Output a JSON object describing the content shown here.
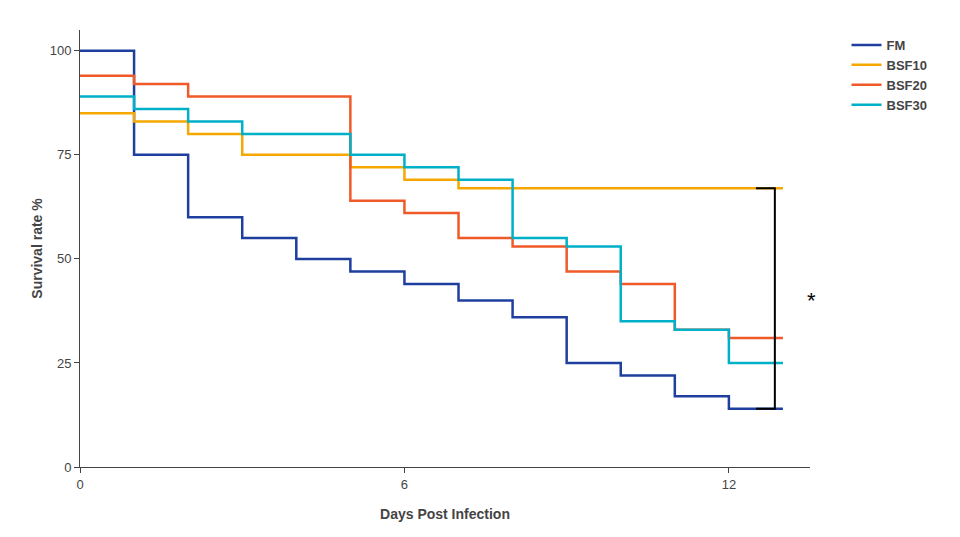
{
  "chart_data": {
    "type": "line",
    "xlabel": "Days Post Infection",
    "ylabel": "Survival rate %",
    "xlim": [
      0,
      13.5
    ],
    "ylim": [
      0,
      105
    ],
    "xticks": [
      0,
      6,
      12
    ],
    "yticks": [
      0,
      25,
      50,
      75,
      100
    ],
    "grid": false,
    "legend": "upper right",
    "series": [
      {
        "name": "FM",
        "color": "#1f3f9e",
        "x": [
          0,
          1,
          1,
          2,
          2,
          3,
          3,
          4,
          4,
          5,
          5,
          6,
          6,
          7,
          7,
          8,
          8,
          9,
          9,
          10,
          10,
          11,
          11,
          12,
          12,
          13
        ],
        "values": [
          100,
          100,
          75,
          75,
          60,
          60,
          55,
          55,
          50,
          50,
          47,
          47,
          44,
          44,
          40,
          40,
          36,
          36,
          25,
          25,
          22,
          22,
          17,
          17,
          14,
          14
        ]
      },
      {
        "name": "BSF10",
        "color": "#f5a800",
        "x": [
          0,
          1,
          1,
          2,
          2,
          3,
          3,
          5,
          5,
          6,
          6,
          7,
          7,
          8,
          8,
          13
        ],
        "values": [
          85,
          85,
          83,
          83,
          80,
          80,
          75,
          75,
          72,
          72,
          69,
          69,
          67,
          67,
          67,
          67
        ]
      },
      {
        "name": "BSF20",
        "color": "#f05a28",
        "x": [
          0,
          1,
          1,
          2,
          2,
          5,
          5,
          6,
          6,
          7,
          7,
          8,
          8,
          9,
          9,
          10,
          10,
          11,
          11,
          12,
          12,
          13
        ],
        "values": [
          94,
          94,
          92,
          92,
          89,
          89,
          64,
          64,
          61,
          61,
          55,
          55,
          53,
          53,
          47,
          47,
          44,
          44,
          33,
          33,
          31,
          31
        ]
      },
      {
        "name": "BSF30",
        "color": "#00b0c8",
        "x": [
          0,
          1,
          1,
          2,
          2,
          3,
          3,
          5,
          5,
          6,
          6,
          7,
          7,
          8,
          8,
          9,
          9,
          10,
          10,
          11,
          11,
          12,
          12,
          13
        ],
        "values": [
          89,
          89,
          86,
          86,
          83,
          83,
          80,
          80,
          75,
          75,
          72,
          72,
          69,
          69,
          55,
          55,
          53,
          53,
          35,
          35,
          33,
          33,
          25,
          25
        ]
      }
    ],
    "bracket": {
      "color": "#000000",
      "x": [
        12.5,
        12.85,
        12.85,
        12.5
      ],
      "y": [
        67,
        67,
        14,
        14
      ]
    },
    "annotations": [
      {
        "text": "*",
        "x": 13.4,
        "y": 40
      }
    ]
  }
}
